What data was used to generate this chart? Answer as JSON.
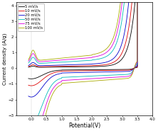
{
  "title": "",
  "xlabel": "Potential(V)",
  "ylabel": "Current density (A/g)",
  "xlim": [
    -0.5,
    4.0
  ],
  "ylim": [
    -3.0,
    4.2
  ],
  "xticks": [
    0.0,
    0.5,
    1.0,
    1.5,
    2.0,
    2.5,
    3.0,
    3.5,
    4.0
  ],
  "yticks": [
    -3,
    -2,
    -1,
    0,
    1,
    2,
    3,
    4
  ],
  "scan_rates": [
    5,
    10,
    20,
    50,
    75,
    100
  ],
  "colors": [
    "#000000",
    "#dd0000",
    "#0000cc",
    "#00bbbb",
    "#dd00dd",
    "#aaaa00"
  ],
  "background_color": "#ffffff",
  "legend_labels": [
    "5 mV/s",
    "10 mV/s",
    "20 mV/s",
    "50 mV/s",
    "75 mV/s",
    "100 mV/s"
  ],
  "v_start": -0.1,
  "v_end": 3.5
}
